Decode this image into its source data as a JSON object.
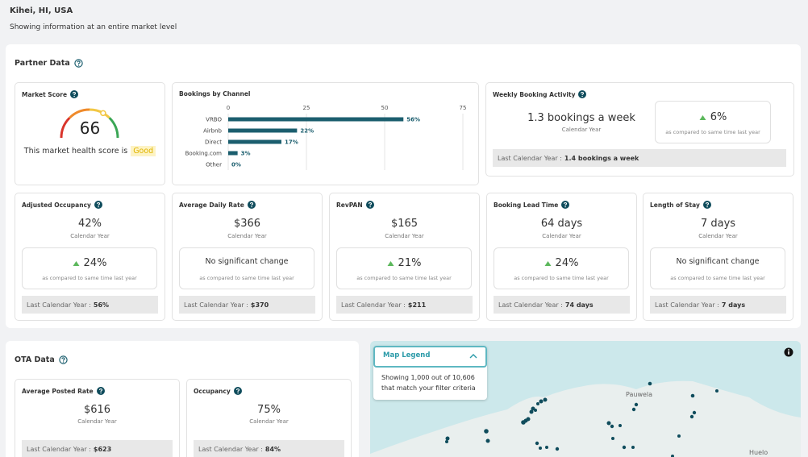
{
  "header": {
    "location": "Kihei, HI, USA",
    "subtitle": "Showing information at an entire market level"
  },
  "partner_data": {
    "title": "Partner Data",
    "market_score": {
      "title": "Market Score",
      "score": "66",
      "caption": "This market health score is",
      "rating": "Good"
    },
    "weekly_booking": {
      "title": "Weekly Booking Activity",
      "value": "1.3 bookings a week",
      "period": "Calendar Year",
      "trend": "up",
      "change": "6%",
      "note": "as compared to same time last year",
      "last_label": "Last Calendar Year :",
      "last_value": "1.4 bookings a week"
    },
    "metrics": [
      {
        "title": "Adjusted Occupancy",
        "value": "42%",
        "period": "Calendar Year",
        "trend": "up",
        "change": "24%",
        "note": "as compared to same time last year",
        "last_label": "Last Calendar Year :",
        "last_value": "56%"
      },
      {
        "title": "Average Daily Rate",
        "value": "$366",
        "period": "Calendar Year",
        "trend": "none",
        "change": "No significant change",
        "note": "as compared to same time last year",
        "last_label": "Last Calendar Year :",
        "last_value": "$370"
      },
      {
        "title": "RevPAN",
        "value": "$165",
        "period": "Calendar Year",
        "trend": "up",
        "change": "21%",
        "note": "as compared to same time last year",
        "last_label": "Last Calendar Year :",
        "last_value": "$211"
      },
      {
        "title": "Booking Lead Time",
        "value": "64 days",
        "period": "Calendar Year",
        "trend": "up",
        "change": "24%",
        "note": "as compared to same time last year",
        "last_label": "Last Calendar Year :",
        "last_value": "74 days"
      },
      {
        "title": "Length of Stay",
        "value": "7 days",
        "period": "Calendar Year",
        "trend": "none",
        "change": "No significant change",
        "note": "as compared to same time last year",
        "last_label": "Last Calendar Year :",
        "last_value": "7 days"
      }
    ]
  },
  "chart_data": {
    "type": "bar",
    "orientation": "horizontal",
    "title": "Bookings by Channel",
    "categories": [
      "VRBO",
      "Airbnb",
      "Direct",
      "Booking.com",
      "Other"
    ],
    "values": [
      56,
      22,
      17,
      3,
      0
    ],
    "value_labels": [
      "56%",
      "22%",
      "17%",
      "3%",
      "0%"
    ],
    "xlim": [
      0,
      75
    ],
    "xticks": [
      0,
      25,
      50,
      75
    ],
    "color": "#1b5e6e",
    "grid": true
  },
  "ota_data": {
    "title": "OTA Data",
    "metrics": [
      {
        "title": "Average Posted Rate",
        "value": "$616",
        "period": "Calendar Year",
        "last_label": "Last Calendar Year :",
        "last_value": "$623"
      },
      {
        "title": "Occupancy",
        "value": "75%",
        "period": "Calendar Year",
        "last_label": "Last Calendar Year :",
        "last_value": "84%"
      }
    ]
  },
  "map": {
    "legend_title": "Map Legend",
    "legend_line_1": "Showing 1,000 out of 10,606",
    "legend_line_2": "that match your filter criteria",
    "places": [
      "Pauwela",
      "Huelo"
    ]
  }
}
